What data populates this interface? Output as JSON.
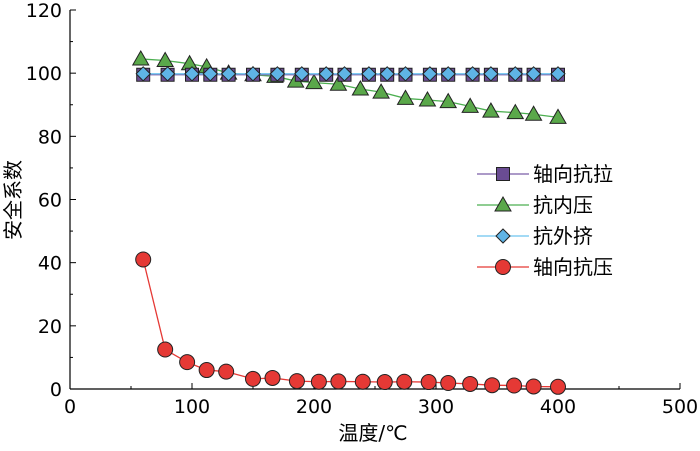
{
  "chart_data": {
    "type": "line",
    "title": "",
    "xlabel": "温度/℃",
    "ylabel": "安全系数",
    "xlim": [
      0,
      500
    ],
    "ylim": [
      0,
      120
    ],
    "xticks": [
      0,
      100,
      200,
      300,
      400,
      500
    ],
    "yticks": [
      0,
      20,
      40,
      60,
      80,
      100,
      120
    ],
    "grid": false,
    "legend_position": "right",
    "series": [
      {
        "name": "轴向抗拉",
        "marker": "square",
        "color": "#6a4c93",
        "line_color": "#7b5ea7",
        "x": [
          60,
          80,
          100,
          115,
          130,
          150,
          170,
          190,
          210,
          225,
          245,
          260,
          275,
          295,
          310,
          330,
          345,
          365,
          380,
          400
        ],
        "y": [
          99.5,
          99.5,
          99.5,
          99.5,
          99.5,
          99.5,
          99.5,
          99.5,
          99.5,
          99.5,
          99.5,
          99.5,
          99.5,
          99.5,
          99.5,
          99.5,
          99.5,
          99.5,
          99.5,
          99.5
        ]
      },
      {
        "name": "抗内压",
        "marker": "triangle",
        "color": "#5aa84a",
        "line_color": "#4caf50",
        "x": [
          58,
          78,
          98,
          112,
          130,
          150,
          168,
          185,
          200,
          220,
          238,
          255,
          275,
          293,
          310,
          328,
          345,
          365,
          380,
          400
        ],
        "y": [
          104.5,
          104,
          103,
          102,
          100,
          99.5,
          99,
          97.5,
          97,
          96.5,
          95,
          94,
          92,
          91.5,
          91,
          89.5,
          88,
          87.5,
          87,
          86
        ]
      },
      {
        "name": "抗外挤",
        "marker": "diamond",
        "color": "#5fb4e6",
        "line_color": "#6cc3ef",
        "x": [
          60,
          80,
          100,
          115,
          130,
          150,
          170,
          190,
          210,
          225,
          245,
          260,
          275,
          295,
          310,
          330,
          345,
          365,
          380,
          400
        ],
        "y": [
          99.8,
          99.8,
          99.8,
          99.8,
          99.8,
          99.8,
          99.8,
          99.8,
          99.8,
          99.8,
          99.8,
          99.8,
          99.8,
          99.8,
          99.8,
          99.8,
          99.8,
          99.8,
          99.8,
          99.8
        ]
      },
      {
        "name": "轴向抗压",
        "marker": "circle",
        "color": "#e53935",
        "line_color": "#e53935",
        "x": [
          60,
          78,
          96,
          112,
          128,
          150,
          166,
          186,
          204,
          220,
          240,
          258,
          274,
          294,
          310,
          328,
          346,
          364,
          380,
          400
        ],
        "y": [
          41,
          12.5,
          8.5,
          6,
          5.5,
          3.2,
          3.5,
          2.5,
          2.3,
          2.4,
          2.3,
          2.2,
          2.3,
          2.2,
          1.9,
          1.6,
          1.2,
          1.1,
          0.8,
          0.7
        ]
      }
    ]
  }
}
